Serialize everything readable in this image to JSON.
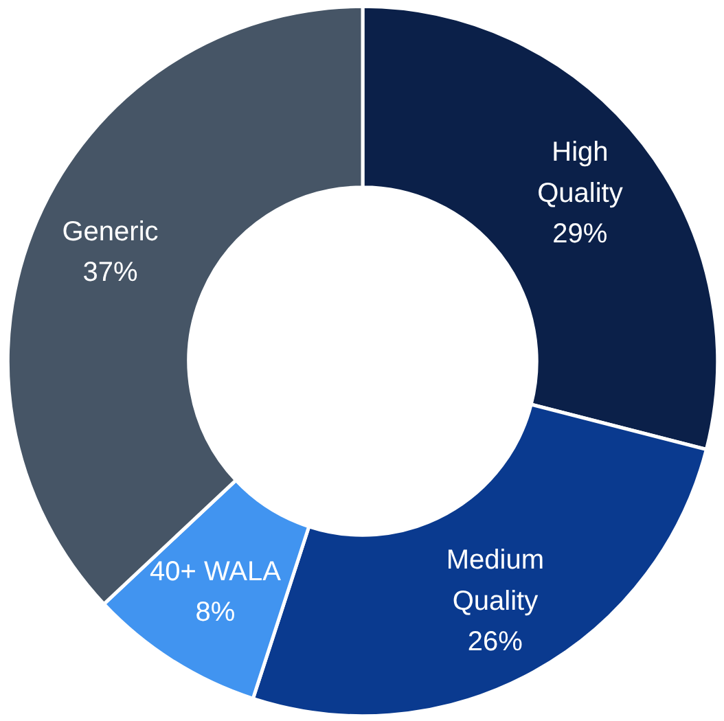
{
  "chart_data": {
    "type": "donut",
    "categories": [
      "High Quality",
      "Medium Quality",
      "40+ WALA",
      "Generic"
    ],
    "values": [
      29,
      26,
      8,
      37
    ],
    "colors": [
      "#0b2049",
      "#0a3a8f",
      "#4194f0",
      "#465566"
    ],
    "value_labels": [
      "29%",
      "26%",
      "8%",
      "37%"
    ],
    "legend": false
  }
}
